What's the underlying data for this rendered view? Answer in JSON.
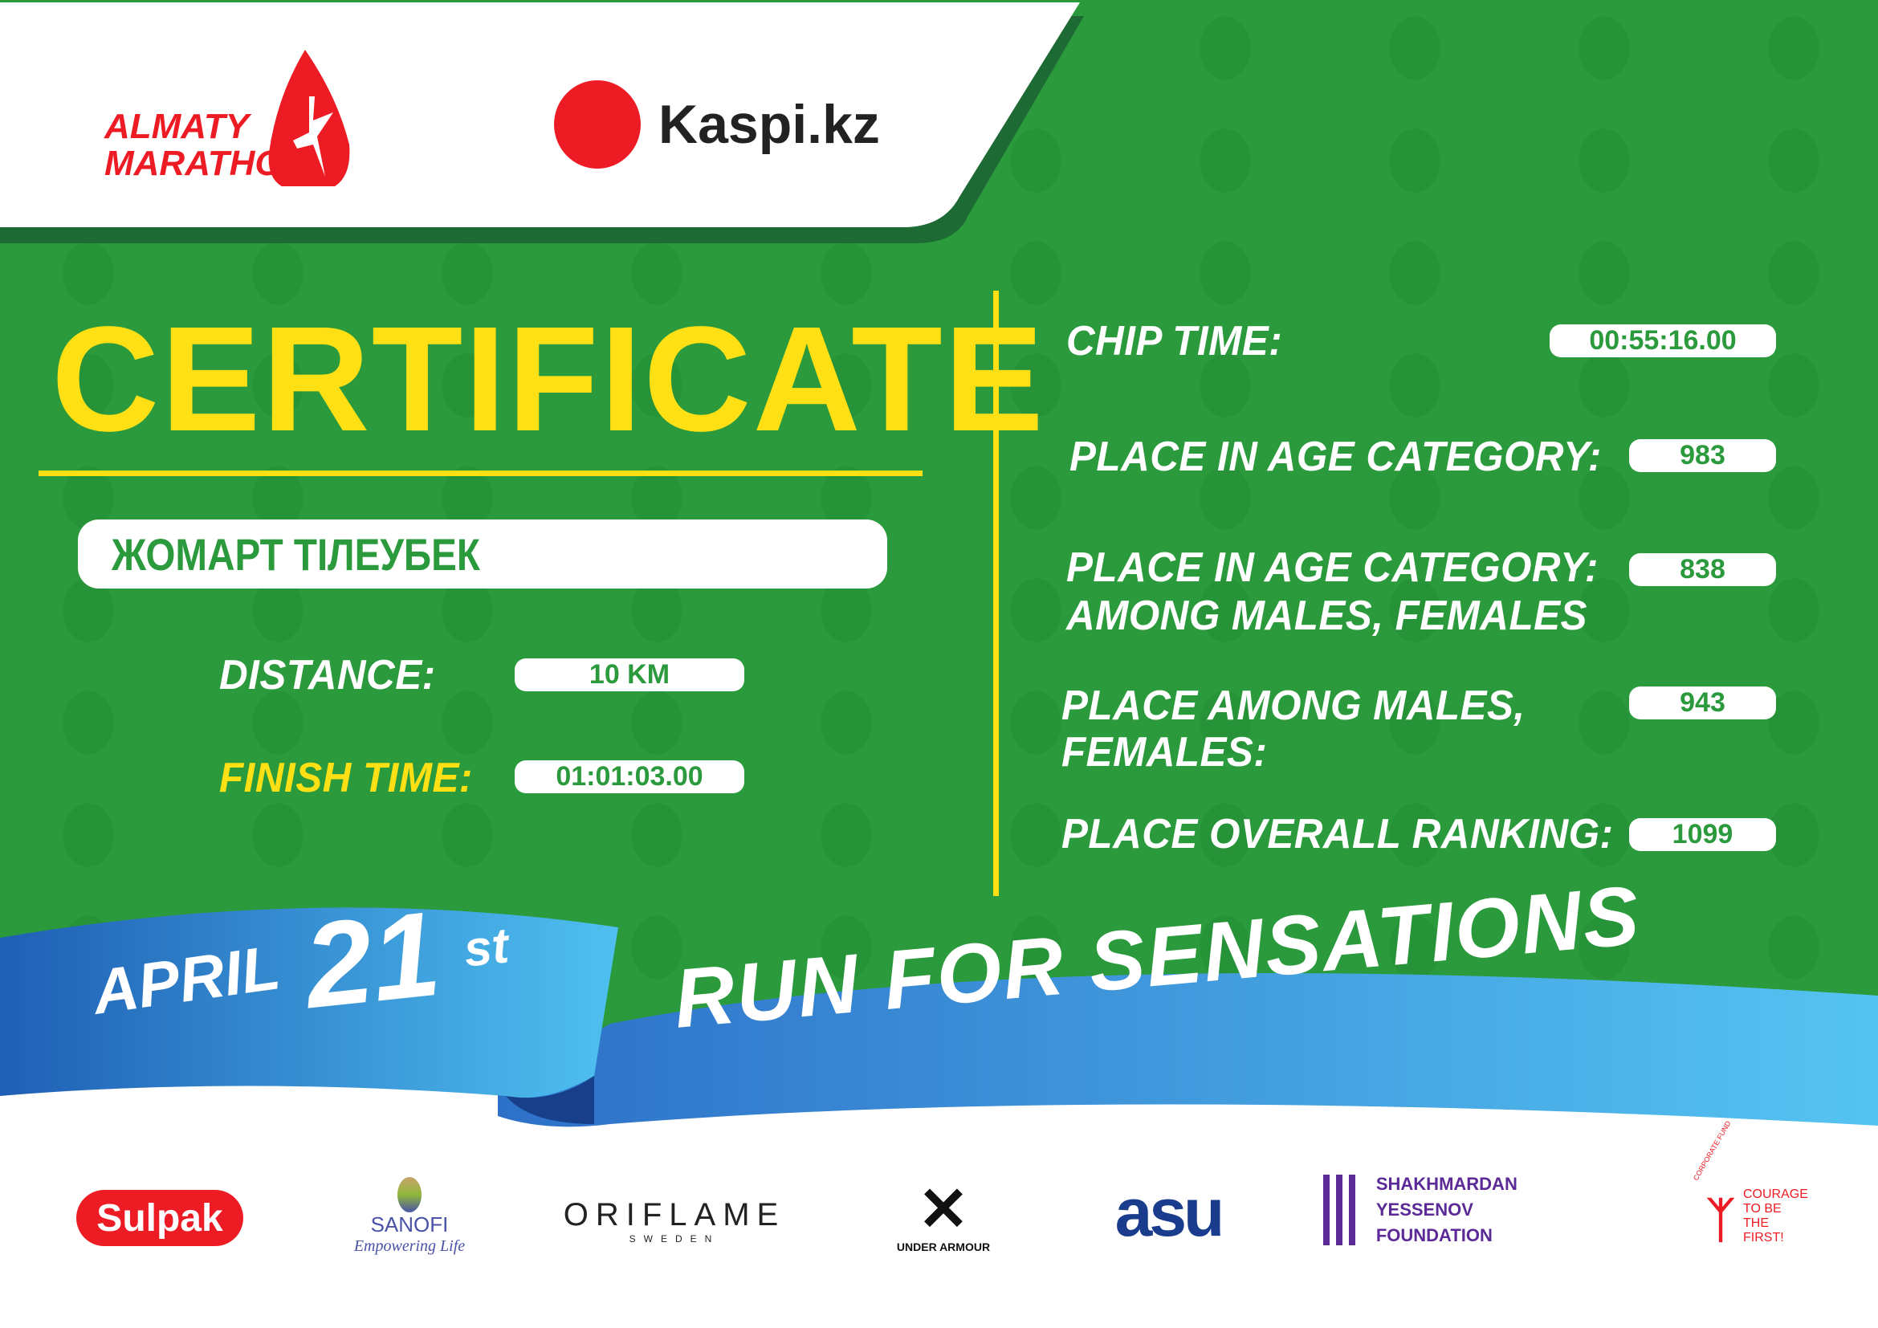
{
  "header": {
    "event_logo": "ALMATY MARATHON",
    "sponsor_logo": "Kaspi.kz"
  },
  "certificate": {
    "title": "CERTIFICATE",
    "name": "ЖОМАРТ ТІЛЕУБЕК",
    "distance_label": "DISTANCE:",
    "distance": "10 KM",
    "finish_time_label": "FINISH TIME:",
    "finish_time": "01:01:03.00"
  },
  "results": {
    "chip_time_label": "CHIP TIME:",
    "chip_time": "00:55:16.00",
    "age_cat_label": "PLACE IN AGE CATEGORY:",
    "age_cat": "983",
    "age_cat_gender_label_1": "PLACE IN AGE CATEGORY:",
    "age_cat_gender_label_2": "AMONG MALES, FEMALES",
    "age_cat_gender": "838",
    "gender_label_1": "PLACE AMONG MALES,",
    "gender_label_2": "FEMALES:",
    "gender": "943",
    "overall_label": "PLACE OVERALL RANKING:",
    "overall": "1099"
  },
  "ribbon": {
    "month": "APRIL",
    "day": "21",
    "suffix": "st",
    "slogan": "RUN FOR SENSATIONS"
  },
  "partners": [
    {
      "name": "Sulpak"
    },
    {
      "name": "SANOFI",
      "tagline": "Empowering Life"
    },
    {
      "name": "ORIFLAME",
      "tagline": "SWEDEN"
    },
    {
      "name": "UNDER ARMOUR"
    },
    {
      "name": "asu"
    },
    {
      "name": "SHAKHMARDAN YESSENOV",
      "tagline": "FOUNDATION"
    },
    {
      "name": "CORPORATE FUND",
      "tagline": "COURAGE TO BE THE FIRST!"
    }
  ],
  "colors": {
    "green": "#2a9a3c",
    "dark_green": "#1e6a34",
    "yellow": "#ffe014",
    "red": "#ed1c24",
    "blue": "#2f7fd1"
  }
}
